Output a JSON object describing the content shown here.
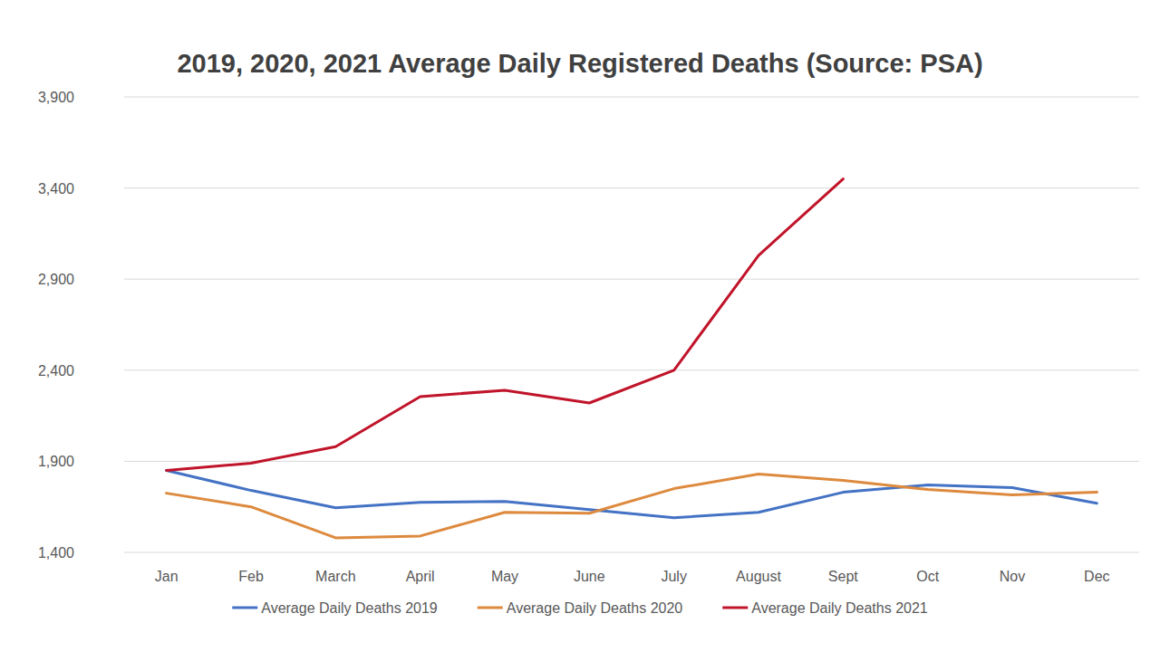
{
  "chart_data": {
    "type": "line",
    "title": "2019, 2020, 2021 Average Daily Registered Deaths (Source: PSA)",
    "categories": [
      "Jan",
      "Feb",
      "March",
      "April",
      "May",
      "June",
      "July",
      "August",
      "Sept",
      "Oct",
      "Nov",
      "Dec"
    ],
    "series": [
      {
        "name": "Average Daily Deaths 2019",
        "color": "#4472c4",
        "values": [
          1850,
          1740,
          1645,
          1675,
          1680,
          1635,
          1590,
          1620,
          1730,
          1770,
          1755,
          1670
        ]
      },
      {
        "name": "Average Daily Deaths 2020",
        "color": "#dd8a3e",
        "values": [
          1725,
          1650,
          1480,
          1490,
          1620,
          1615,
          1750,
          1830,
          1795,
          1745,
          1715,
          1730
        ]
      },
      {
        "name": "Average Daily Deaths 2021",
        "color": "#c0142a",
        "values": [
          1850,
          1890,
          1980,
          2255,
          2290,
          2220,
          2400,
          3030,
          3450,
          null,
          null,
          null
        ]
      }
    ],
    "ylim": [
      1400,
      3900
    ],
    "yticks": [
      {
        "value": 1400,
        "label": "1,400"
      },
      {
        "value": 1900,
        "label": "1,900"
      },
      {
        "value": 2400,
        "label": "2,400"
      },
      {
        "value": 2900,
        "label": "2,900"
      },
      {
        "value": 3400,
        "label": "3,400"
      },
      {
        "value": 3900,
        "label": "3,900"
      }
    ],
    "grid": true,
    "legend": "bottom"
  }
}
